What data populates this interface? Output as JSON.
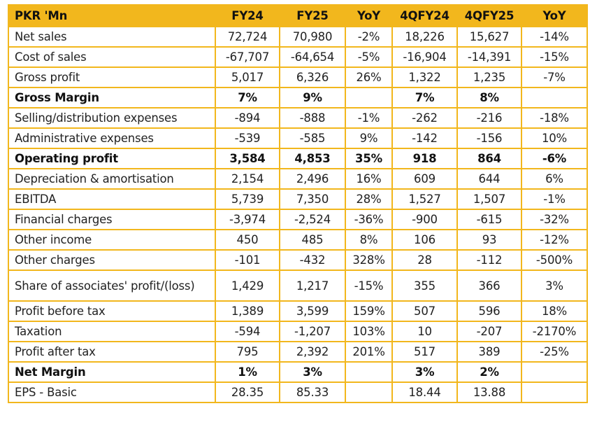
{
  "table": {
    "columns": [
      "PKR 'Mn",
      "FY24",
      "FY25",
      "YoY",
      "4QFY24",
      "4QFY25",
      "YoY"
    ],
    "rows": [
      {
        "label": "Net sales",
        "bold": false,
        "cells": [
          "72,724",
          "70,980",
          "-2%",
          "18,226",
          "15,627",
          "-14%"
        ]
      },
      {
        "label": "Cost of sales",
        "bold": false,
        "cells": [
          "-67,707",
          "-64,654",
          "-5%",
          "-16,904",
          "-14,391",
          "-15%"
        ]
      },
      {
        "label": "Gross profit",
        "bold": false,
        "cells": [
          "5,017",
          "6,326",
          "26%",
          "1,322",
          "1,235",
          "-7%"
        ]
      },
      {
        "label": "Gross Margin",
        "bold": true,
        "cells": [
          "7%",
          "9%",
          "",
          "7%",
          "8%",
          ""
        ]
      },
      {
        "label": "Selling/distribution expenses",
        "bold": false,
        "cells": [
          "-894",
          "-888",
          "-1%",
          "-262",
          "-216",
          "-18%"
        ]
      },
      {
        "label": "Administrative expenses",
        "bold": false,
        "cells": [
          "-539",
          "-585",
          "9%",
          "-142",
          "-156",
          "10%"
        ]
      },
      {
        "label": "Operating profit",
        "bold": true,
        "cells": [
          "3,584",
          "4,853",
          "35%",
          "918",
          "864",
          "-6%"
        ]
      },
      {
        "label": "Depreciation & amortisation",
        "bold": false,
        "cells": [
          "2,154",
          "2,496",
          "16%",
          "609",
          "644",
          "6%"
        ]
      },
      {
        "label": "EBITDA",
        "bold": false,
        "cells": [
          "5,739",
          "7,350",
          "28%",
          "1,527",
          "1,507",
          "-1%"
        ]
      },
      {
        "label": "Financial charges",
        "bold": false,
        "cells": [
          "-3,974",
          "-2,524",
          "-36%",
          "-900",
          "-615",
          "-32%"
        ]
      },
      {
        "label": "Other income",
        "bold": false,
        "cells": [
          "450",
          "485",
          "8%",
          "106",
          "93",
          "-12%"
        ]
      },
      {
        "label": "Other charges",
        "bold": false,
        "cells": [
          "-101",
          "-432",
          "328%",
          "28",
          "-112",
          "-500%"
        ]
      },
      {
        "label": "Share of associates' profit/(loss)",
        "bold": false,
        "cells": [
          "1,429",
          "1,217",
          "-15%",
          "355",
          "366",
          "3%"
        ]
      },
      {
        "label": "Profit before tax",
        "bold": false,
        "cells": [
          "1,389",
          "3,599",
          "159%",
          "507",
          "596",
          "18%"
        ]
      },
      {
        "label": "Taxation",
        "bold": false,
        "cells": [
          "-594",
          "-1,207",
          "103%",
          "10",
          "-207",
          "-2170%"
        ]
      },
      {
        "label": "Profit after tax",
        "bold": false,
        "cells": [
          "795",
          "2,392",
          "201%",
          "517",
          "389",
          "-25%"
        ]
      },
      {
        "label": "Net Margin",
        "bold": true,
        "cells": [
          "1%",
          "3%",
          "",
          "3%",
          "2%",
          ""
        ]
      },
      {
        "label": "EPS - Basic",
        "bold": false,
        "cells": [
          "28.35",
          "85.33",
          "",
          "18.44",
          "13.88",
          ""
        ]
      }
    ]
  },
  "colors": {
    "accent": "#f2b71d",
    "text": "#1a1a1a",
    "background": "#ffffff"
  }
}
